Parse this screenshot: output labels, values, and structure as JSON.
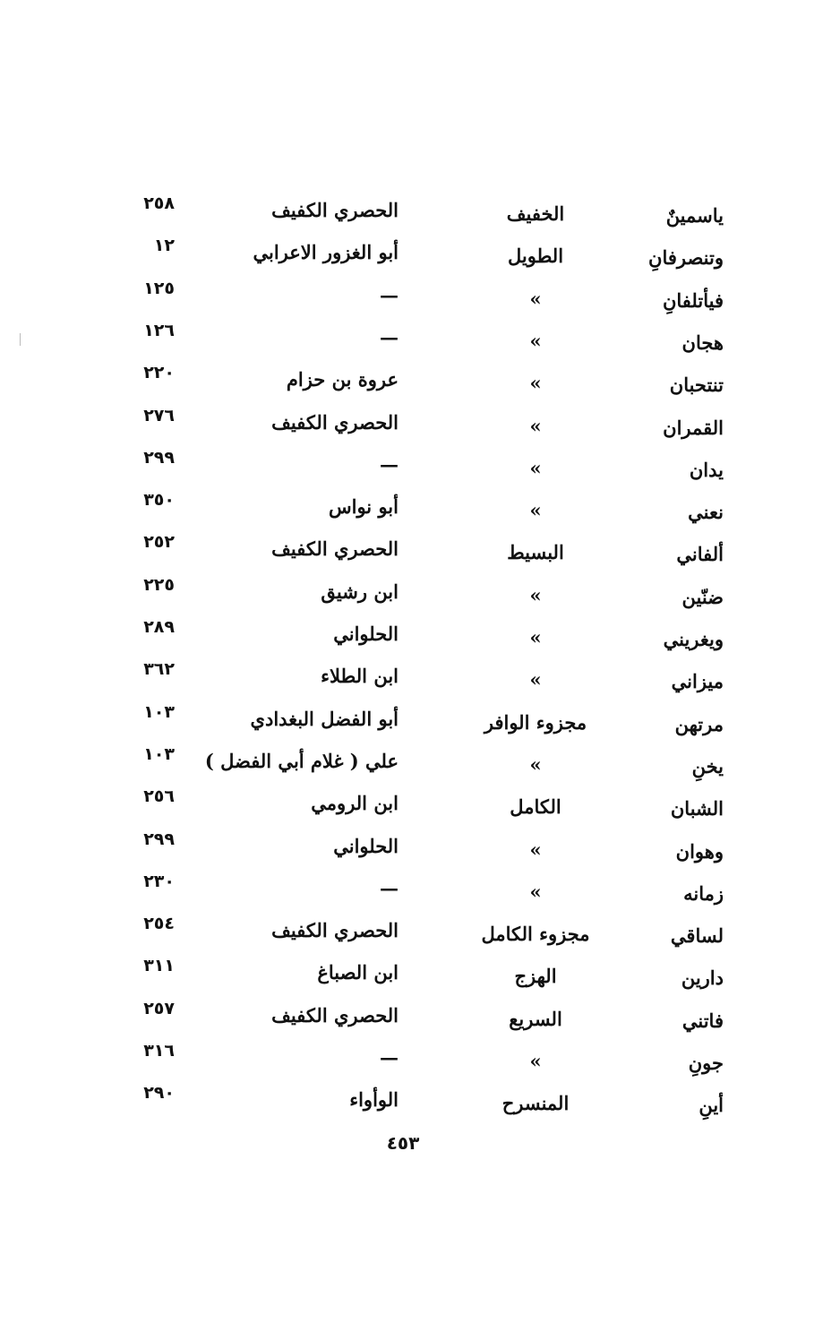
{
  "rows": [
    {
      "rhyme": "ياسمينٌ",
      "meter": "الخفيف",
      "poet": "الحصري الكفيف",
      "page": "٢٥٨"
    },
    {
      "rhyme": "وتنصرفانِ",
      "meter": "الطويل",
      "poet": "أبو الغزور الاعرابي",
      "page": "١٢"
    },
    {
      "rhyme": "فيأتلفانِ",
      "meter": "»",
      "poet": "—",
      "page": "١٢٥"
    },
    {
      "rhyme": "هجان",
      "meter": "»",
      "poet": "—",
      "page": "١٢٦"
    },
    {
      "rhyme": "تنتحبان",
      "meter": "»",
      "poet": "عروة بن حزام",
      "page": "٢٢٠"
    },
    {
      "rhyme": "القمران",
      "meter": "»",
      "poet": "الحصري الكفيف",
      "page": "٢٧٦"
    },
    {
      "rhyme": "يدان",
      "meter": "»",
      "poet": "—",
      "page": "٢٩٩"
    },
    {
      "rhyme": "نعني",
      "meter": "»",
      "poet": "أبو نواس",
      "page": "٣٥٠"
    },
    {
      "rhyme": "ألفاني",
      "meter": "البسيط",
      "poet": "الحصري الكفيف",
      "page": "٢٥٢"
    },
    {
      "rhyme": "ضنّين",
      "meter": "»",
      "poet": "ابن رشيق",
      "page": "٢٢٥"
    },
    {
      "rhyme": "ويغريني",
      "meter": "»",
      "poet": "الحلواني",
      "page": "٢٨٩"
    },
    {
      "rhyme": "ميزاني",
      "meter": "»",
      "poet": "ابن الطلاء",
      "page": "٣٦٢"
    },
    {
      "rhyme": "مرتهن",
      "meter": "مجزوء الوافر",
      "poet": "أبو الفضل البغدادي",
      "page": "١٠٣"
    },
    {
      "rhyme": "يخنِ",
      "meter": "»",
      "poet": "علي ( غلام أبي الفضل )",
      "page": "١٠٣"
    },
    {
      "rhyme": "الشبان",
      "meter": "الكامل",
      "poet": "ابن الرومي",
      "page": "٢٥٦"
    },
    {
      "rhyme": "وهوان",
      "meter": "»",
      "poet": "الحلواني",
      "page": "٢٩٩"
    },
    {
      "rhyme": "زمانه",
      "meter": "»",
      "poet": "—",
      "page": "٢٣٠"
    },
    {
      "rhyme": "لساقي",
      "meter": "مجزوء الكامل",
      "poet": "الحصري الكفيف",
      "page": "٢٥٤"
    },
    {
      "rhyme": "دارين",
      "meter": "الهزج",
      "poet": "ابن الصباغ",
      "page": "٣١١"
    },
    {
      "rhyme": "فاتني",
      "meter": "السريع",
      "poet": "الحصري الكفيف",
      "page": "٢٥٧"
    },
    {
      "rhyme": "جونِ",
      "meter": "»",
      "poet": "—",
      "page": "٣١٦"
    },
    {
      "rhyme": "أينِ",
      "meter": "المنسرح",
      "poet": "الوأواء",
      "page": "٢٩٠"
    }
  ],
  "footer": {
    "page_number": "٤٥٣"
  }
}
